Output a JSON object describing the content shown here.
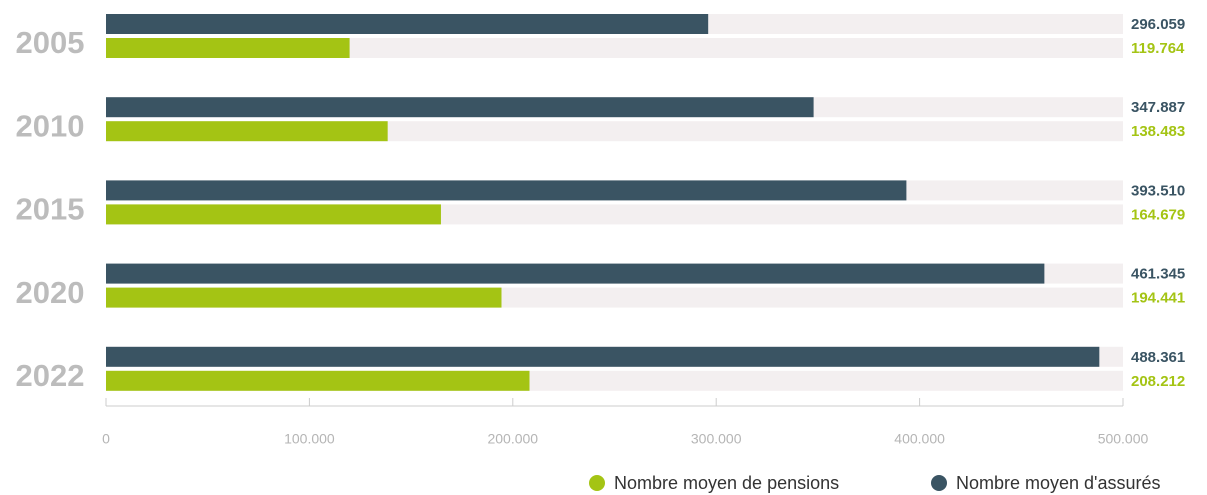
{
  "chart_data": {
    "type": "barh",
    "categories": [
      "2005",
      "2010",
      "2015",
      "2020",
      "2022"
    ],
    "series": [
      {
        "name": "Nombre moyen de pensions",
        "color": "#a4c414",
        "values": [
          119764,
          138483,
          164679,
          194441,
          208212
        ],
        "value_labels": [
          "119.764",
          "138.483",
          "164.679",
          "194.441",
          "208.212"
        ]
      },
      {
        "name": "Nombre moyen d'assurés",
        "color": "#3a5463",
        "values": [
          296059,
          347887,
          393510,
          461345,
          488361
        ],
        "value_labels": [
          "296.059",
          "347.887",
          "393.510",
          "461.345",
          "488.361"
        ]
      }
    ],
    "xlim": [
      0,
      500000
    ],
    "xticks": [
      0,
      {
        "value": 100000,
        "label": "100.000"
      },
      {
        "value": 200000,
        "label": "200.000"
      },
      {
        "value": 300000,
        "label": "300.000"
      },
      {
        "value": 400000,
        "label": "400.000"
      },
      {
        "value": 500000,
        "label": "500.000"
      }
    ]
  }
}
